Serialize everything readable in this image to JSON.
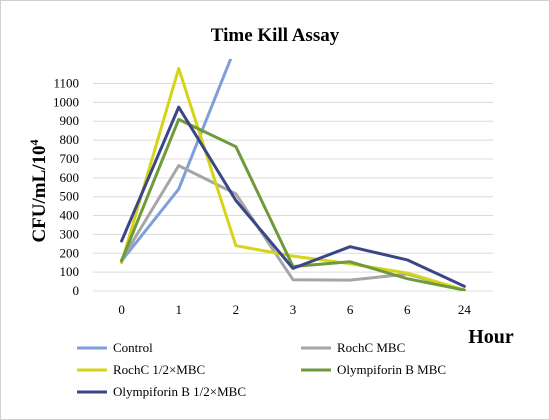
{
  "chart_data": {
    "type": "line",
    "title": "Time Kill Assay",
    "xlabel": "Hour",
    "ylabel": "CFU/mL/10",
    "ylabel_superscript": "4",
    "categories": [
      "0",
      "1",
      "2",
      "3",
      "6",
      "6",
      "24"
    ],
    "ylim": [
      0,
      1100
    ],
    "yticks": [
      0,
      100,
      200,
      300,
      400,
      500,
      600,
      700,
      800,
      900,
      1000,
      1100
    ],
    "grid": true,
    "legend_position": "bottom",
    "series": [
      {
        "name": "Control",
        "color": "#7f9fd8",
        "values": [
          160,
          540,
          1300,
          null,
          null,
          null,
          null
        ]
      },
      {
        "name": "RochC MBC",
        "color": "#a6a6a6",
        "values": [
          165,
          665,
          515,
          60,
          58,
          90,
          5
        ]
      },
      {
        "name": "RochC 1/2×MBC",
        "color": "#d6d418",
        "values": [
          150,
          1180,
          240,
          185,
          145,
          95,
          5
        ]
      },
      {
        "name": "Olympiforin B MBC",
        "color": "#6f9a3c",
        "values": [
          160,
          910,
          765,
          130,
          155,
          65,
          5
        ]
      },
      {
        "name": "Olympiforin B 1/2×MBC",
        "color": "#3a4787",
        "values": [
          265,
          975,
          480,
          120,
          235,
          165,
          25
        ]
      }
    ]
  }
}
